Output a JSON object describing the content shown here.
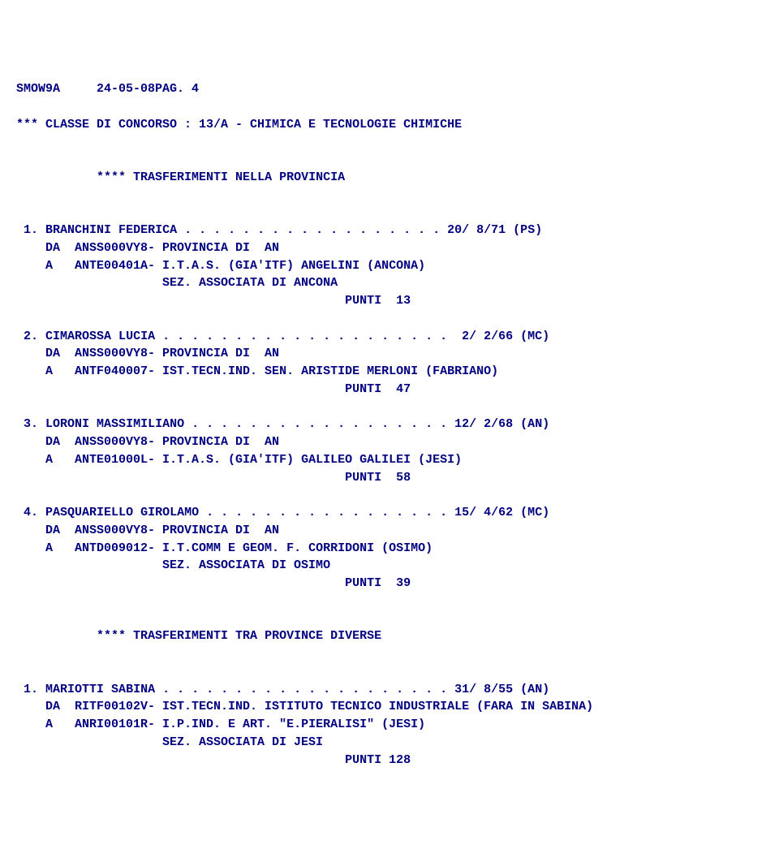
{
  "header": {
    "code": "SMOW9A",
    "date_page": "24-05-08PAG. 4"
  },
  "classe_line": "*** CLASSE DI CONCORSO : 13/A - CHIMICA E TECNOLOGIE CHIMICHE",
  "section1_title": "**** TRASFERIMENTI NELLA PROVINCIA",
  "section1": [
    {
      "num": "1",
      "name": "BRANCHINI FEDERICA",
      "dots": ". . . . . . . . . . . . . . . . . .",
      "score": "20/ 8/71 (PS)",
      "da": "DA  ANSS000VY8- PROVINCIA DI  AN",
      "a": "A   ANTE00401A- I.T.A.S. (GIA'ITF) ANGELINI (ANCONA)",
      "sez": "SEZ. ASSOCIATA DI ANCONA",
      "punti": "PUNTI  13"
    },
    {
      "num": "2",
      "name": "CIMAROSSA LUCIA",
      "dots": ". . . . . . . . . . . . . . . . . . . .",
      "score": "2/ 2/66 (MC)",
      "da": "DA  ANSS000VY8- PROVINCIA DI  AN",
      "a": "A   ANTF040007- IST.TECN.IND. SEN. ARISTIDE MERLONI (FABRIANO)",
      "sez": "",
      "punti": "PUNTI  47"
    },
    {
      "num": "3",
      "name": "LORONI MASSIMILIANO",
      "dots": ". . . . . . . . . . . . . . . . . .",
      "score": "12/ 2/68 (AN)",
      "da": "DA  ANSS000VY8- PROVINCIA DI  AN",
      "a": "A   ANTE01000L- I.T.A.S. (GIA'ITF) GALILEO GALILEI (JESI)",
      "sez": "",
      "punti": "PUNTI  58"
    },
    {
      "num": "4",
      "name": "PASQUARIELLO GIROLAMO",
      "dots": ". . . . . . . . . . . . . . . . .",
      "score": "15/ 4/62 (MC)",
      "da": "DA  ANSS000VY8- PROVINCIA DI  AN",
      "a": "A   ANTD009012- I.T.COMM E GEOM. F. CORRIDONI (OSIMO)",
      "sez": "SEZ. ASSOCIATA DI OSIMO",
      "punti": "PUNTI  39"
    }
  ],
  "section2_title": "**** TRASFERIMENTI TRA PROVINCE DIVERSE",
  "section2": [
    {
      "num": "1",
      "name": "MARIOTTI SABINA",
      "dots": ". . . . . . . . . . . . . . . . . . . .",
      "score": "31/ 8/55 (AN)",
      "da": "DA  RITF00102V- IST.TECN.IND. ISTITUTO TECNICO INDUSTRIALE (FARA IN SABINA)",
      "a": "A   ANRI00101R- I.P.IND. E ART. \"E.PIERALISI\" (JESI)",
      "sez": "SEZ. ASSOCIATA DI JESI",
      "punti": "PUNTI 128"
    }
  ]
}
